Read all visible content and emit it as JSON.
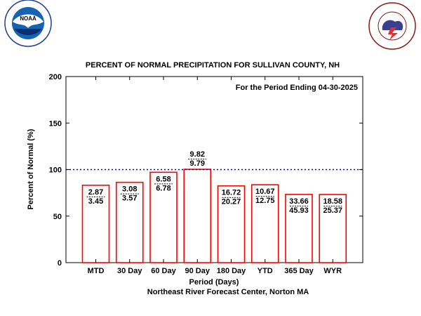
{
  "logos": {
    "noaa": {
      "icon": "noaa-logo",
      "center_text": "NOAA",
      "ring_text": "NATIONAL OCEANIC AND ATMOSPHERIC ADMINISTRATION · U.S. DEPARTMENT OF COMMERCE"
    },
    "nws": {
      "icon": "nws-logo",
      "ring_text": "NATIONAL WEATHER SERVICE"
    }
  },
  "chart_data": {
    "type": "bar",
    "title": "PERCENT OF NORMAL PRECIPITATION FOR SULLIVAN COUNTY, NH",
    "subtitle": "For the Period Ending 04-30-2025",
    "xlabel": "Period (Days)",
    "ylabel": "Percent of Normal (%)",
    "footer": "Northeast River Forecast Center, Norton MA",
    "ylim": [
      0,
      200
    ],
    "yticks": [
      "0",
      "50",
      "100",
      "150",
      "200"
    ],
    "reference_line": {
      "value": 100
    },
    "categories": [
      "MTD",
      "30 Day",
      "60 Day",
      "90 Day",
      "180 Day",
      "YTD",
      "365 Day",
      "WYR"
    ],
    "values": [
      83.2,
      86.3,
      97.1,
      100.3,
      82.5,
      83.7,
      73.3,
      73.2
    ],
    "observed": [
      "2.87",
      "3.08",
      "6.58",
      "9.82",
      "16.72",
      "10.67",
      "33.66",
      "18.58"
    ],
    "normal": [
      "3.45",
      "3.57",
      "6.78",
      "9.79",
      "20.27",
      "12.75",
      "45.93",
      "25.37"
    ],
    "colors": {
      "bar": "#ff0000",
      "reference": "#0000cc"
    }
  }
}
